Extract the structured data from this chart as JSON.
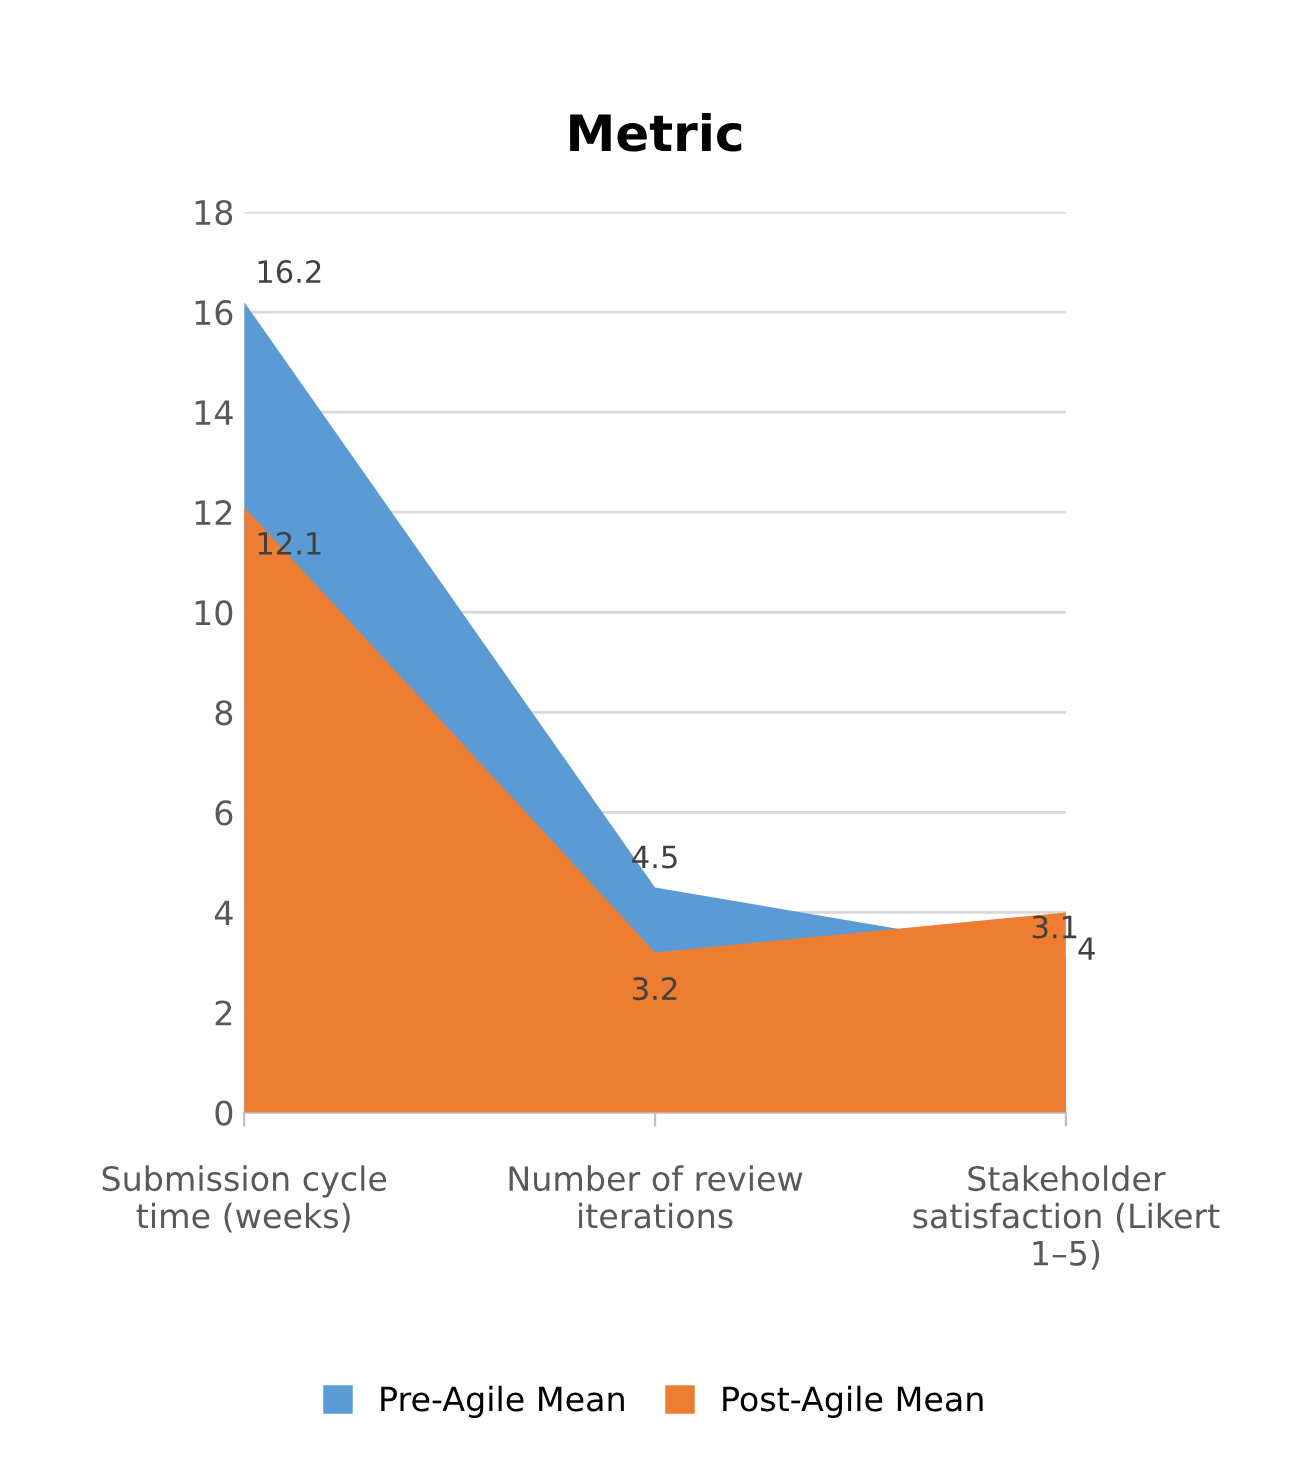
{
  "chart_data": {
    "type": "area",
    "title": "Metric",
    "categories": [
      "Submission cycle\ntime (weeks)",
      "Number of review\niterations",
      "Stakeholder\nsatisfaction (Likert\n1–5)"
    ],
    "series": [
      {
        "name": "Pre-Agile Mean",
        "color": "#5b9bd5",
        "values": [
          16.2,
          4.5,
          3.1
        ]
      },
      {
        "name": "Post-Agile Mean",
        "color": "#ed7d31",
        "values": [
          12.1,
          3.2,
          4
        ]
      }
    ],
    "ylim": [
      0,
      18
    ],
    "yticks": [
      0,
      2,
      4,
      6,
      8,
      10,
      12,
      14,
      16,
      18
    ],
    "grid": "y",
    "legend": "bottom",
    "data_labels": true
  }
}
